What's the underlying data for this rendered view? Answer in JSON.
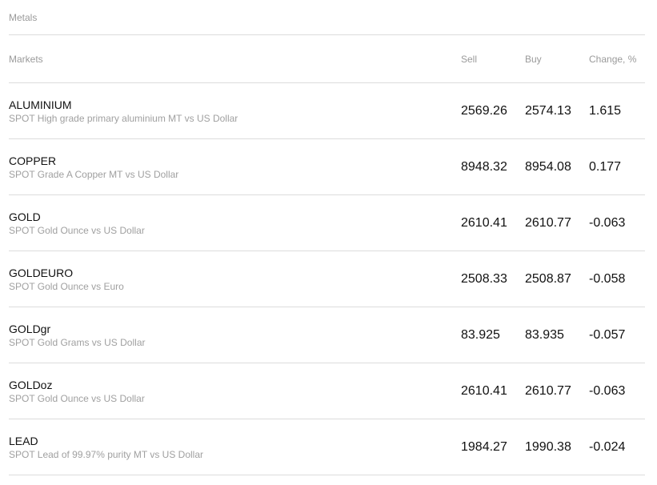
{
  "section_title": "Metals",
  "columns": {
    "markets": "Markets",
    "sell": "Sell",
    "buy": "Buy",
    "change": "Change, %"
  },
  "rows": [
    {
      "name": "ALUMINIUM",
      "desc": "SPOT High grade primary aluminium MT vs US Dollar",
      "sell": "2569.26",
      "buy": "2574.13",
      "change": "1.615"
    },
    {
      "name": "COPPER",
      "desc": "SPOT Grade A Copper MT vs US Dollar",
      "sell": "8948.32",
      "buy": "8954.08",
      "change": "0.177"
    },
    {
      "name": "GOLD",
      "desc": "SPOT Gold Ounce vs US Dollar",
      "sell": "2610.41",
      "buy": "2610.77",
      "change": "-0.063"
    },
    {
      "name": "GOLDEURO",
      "desc": "SPOT Gold Ounce vs Euro",
      "sell": "2508.33",
      "buy": "2508.87",
      "change": "-0.058"
    },
    {
      "name": "GOLDgr",
      "desc": "SPOT Gold Grams vs US Dollar",
      "sell": "83.925",
      "buy": "83.935",
      "change": "-0.057"
    },
    {
      "name": "GOLDoz",
      "desc": "SPOT Gold Ounce vs US Dollar",
      "sell": "2610.41",
      "buy": "2610.77",
      "change": "-0.063"
    },
    {
      "name": "LEAD",
      "desc": "SPOT Lead of 99.97% purity MT vs US Dollar",
      "sell": "1984.27",
      "buy": "1990.38",
      "change": "-0.024"
    }
  ]
}
